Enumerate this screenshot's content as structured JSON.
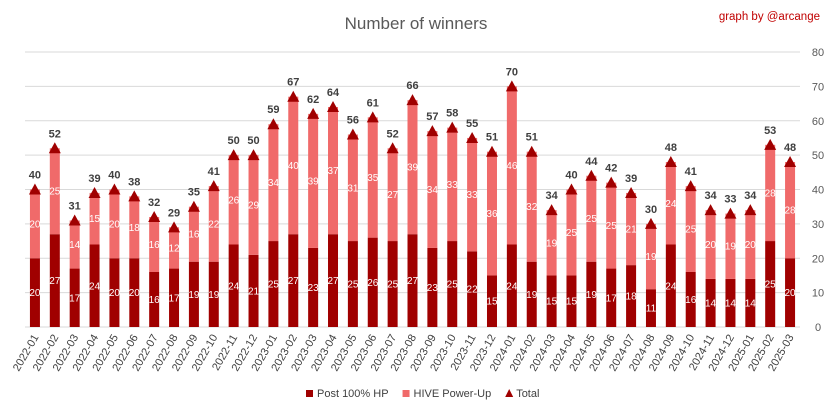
{
  "chart_data": {
    "type": "bar",
    "stacked": true,
    "title": "Number of winners",
    "credit": "graph by @arcange",
    "ylim": [
      0,
      80
    ],
    "yticks": [
      0,
      10,
      20,
      30,
      40,
      50,
      60,
      70,
      80
    ],
    "y_axis_side": "right",
    "grid": true,
    "legend_position": "bottom",
    "categories": [
      "2022-01",
      "2022-02",
      "2022-03",
      "2022-04",
      "2022-05",
      "2022-06",
      "2022-07",
      "2022-08",
      "2022-09",
      "2022-10",
      "2022-11",
      "2022-12",
      "2023-01",
      "2023-02",
      "2023-03",
      "2023-04",
      "2023-05",
      "2023-06",
      "2023-07",
      "2023-08",
      "2023-09",
      "2023-10",
      "2023-11",
      "2023-12",
      "2024-01",
      "2024-02",
      "2024-03",
      "2024-04",
      "2024-05",
      "2024-06",
      "2024-07",
      "2024-08",
      "2024-09",
      "2024-10",
      "2024-11",
      "2024-12",
      "2025-01",
      "2025-02",
      "2025-03"
    ],
    "series": [
      {
        "name": "Post 100% HP",
        "color": "#a00000",
        "values": [
          20,
          27,
          17,
          24,
          20,
          20,
          16,
          17,
          19,
          19,
          24,
          21,
          25,
          27,
          23,
          27,
          25,
          26,
          25,
          27,
          23,
          25,
          22,
          15,
          24,
          19,
          15,
          15,
          19,
          17,
          18,
          11,
          24,
          16,
          14,
          14,
          14,
          25,
          20
        ]
      },
      {
        "name": "HIVE Power-Up",
        "color": "#f06a6a",
        "values": [
          20,
          25,
          14,
          15,
          20,
          18,
          16,
          12,
          16,
          22,
          26,
          29,
          34,
          40,
          39,
          37,
          31,
          35,
          27,
          39,
          34,
          33,
          33,
          36,
          46,
          32,
          19,
          25,
          25,
          25,
          21,
          19,
          24,
          25,
          20,
          19,
          20,
          28,
          28
        ]
      },
      {
        "name": "Total",
        "color": "#a00000",
        "marker": "triangle",
        "values": [
          40,
          52,
          31,
          39,
          40,
          38,
          32,
          29,
          35,
          41,
          50,
          50,
          59,
          67,
          62,
          64,
          56,
          61,
          52,
          66,
          57,
          58,
          55,
          51,
          70,
          51,
          34,
          40,
          44,
          42,
          39,
          30,
          48,
          41,
          34,
          33,
          34,
          53,
          48
        ]
      }
    ]
  }
}
